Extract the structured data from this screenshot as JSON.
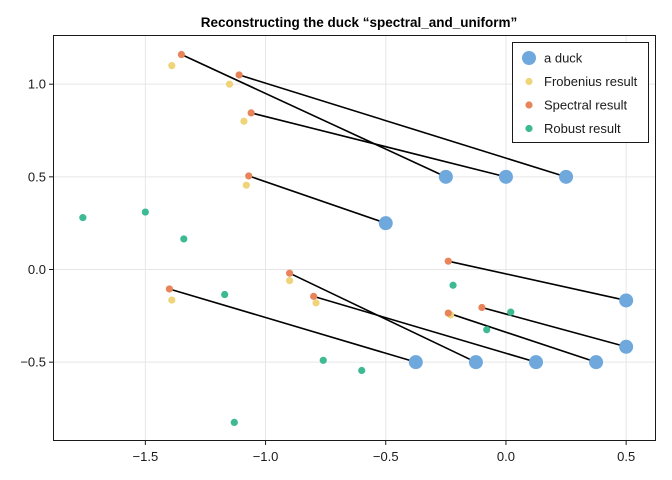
{
  "chart_data": {
    "type": "scatter",
    "title": "Reconstructing the duck “spectral_and_uniform”",
    "xlim": [
      -1.88,
      0.62
    ],
    "ylim": [
      -0.92,
      1.26
    ],
    "xticks": [
      -1.5,
      -1.0,
      -0.5,
      0.0,
      0.5
    ],
    "xtick_labels": [
      "−1.5",
      "−1.0",
      "−0.5",
      "0.0",
      "0.5"
    ],
    "yticks": [
      -0.5,
      0.0,
      0.5,
      1.0
    ],
    "ytick_labels": [
      "−0.5",
      "0.0",
      "0.5",
      "1.0"
    ],
    "grid": true,
    "legend_position": "top-right",
    "series": [
      {
        "name": "a duck",
        "color": "#6fa8dc",
        "marker_size": "large",
        "points": [
          [
            -0.25,
            0.5
          ],
          [
            0.0,
            0.5
          ],
          [
            0.25,
            0.5
          ],
          [
            -0.5,
            0.25
          ],
          [
            0.5,
            -0.167
          ],
          [
            0.5,
            -0.417
          ],
          [
            -0.375,
            -0.5
          ],
          [
            -0.125,
            -0.5
          ],
          [
            0.125,
            -0.5
          ],
          [
            0.375,
            -0.5
          ]
        ]
      },
      {
        "name": "Frobenius result",
        "color": "#f0d47a",
        "marker_size": "small",
        "points": [
          [
            -1.39,
            1.1
          ],
          [
            -1.15,
            1.0
          ],
          [
            -1.09,
            0.8
          ],
          [
            -1.08,
            0.455
          ],
          [
            -0.9,
            -0.06
          ],
          [
            -0.79,
            -0.18
          ],
          [
            -1.39,
            -0.165
          ],
          [
            -0.23,
            -0.245
          ]
        ]
      },
      {
        "name": "Spectral result",
        "color": "#e8845a",
        "marker_size": "small",
        "points": [
          [
            -1.35,
            1.16
          ],
          [
            -1.11,
            1.05
          ],
          [
            -1.06,
            0.845
          ],
          [
            -1.07,
            0.505
          ],
          [
            -0.9,
            -0.02
          ],
          [
            -0.8,
            -0.145
          ],
          [
            -1.4,
            -0.105
          ],
          [
            -0.24,
            0.045
          ],
          [
            -0.24,
            -0.235
          ],
          [
            -0.1,
            -0.205
          ]
        ]
      },
      {
        "name": "Robust result",
        "color": "#3dba93",
        "marker_size": "small",
        "points": [
          [
            -1.76,
            0.28
          ],
          [
            -1.5,
            0.31
          ],
          [
            -1.34,
            0.165
          ],
          [
            -1.17,
            -0.135
          ],
          [
            -0.76,
            -0.49
          ],
          [
            -0.6,
            -0.545
          ],
          [
            -1.13,
            -0.825
          ],
          [
            -0.22,
            -0.085
          ],
          [
            -0.08,
            -0.325
          ],
          [
            0.02,
            -0.23
          ]
        ]
      }
    ],
    "connections": [
      [
        [
          -1.35,
          1.16
        ],
        [
          -0.25,
          0.5
        ]
      ],
      [
        [
          -1.11,
          1.05
        ],
        [
          0.25,
          0.5
        ]
      ],
      [
        [
          -1.06,
          0.845
        ],
        [
          0.0,
          0.5
        ]
      ],
      [
        [
          -1.07,
          0.505
        ],
        [
          -0.5,
          0.25
        ]
      ],
      [
        [
          -0.24,
          0.045
        ],
        [
          0.5,
          -0.167
        ]
      ],
      [
        [
          -0.1,
          -0.205
        ],
        [
          0.5,
          -0.417
        ]
      ],
      [
        [
          -1.4,
          -0.105
        ],
        [
          -0.375,
          -0.5
        ]
      ],
      [
        [
          -0.9,
          -0.02
        ],
        [
          -0.125,
          -0.5
        ]
      ],
      [
        [
          -0.8,
          -0.145
        ],
        [
          0.125,
          -0.5
        ]
      ],
      [
        [
          -0.24,
          -0.235
        ],
        [
          0.375,
          -0.5
        ]
      ]
    ]
  }
}
